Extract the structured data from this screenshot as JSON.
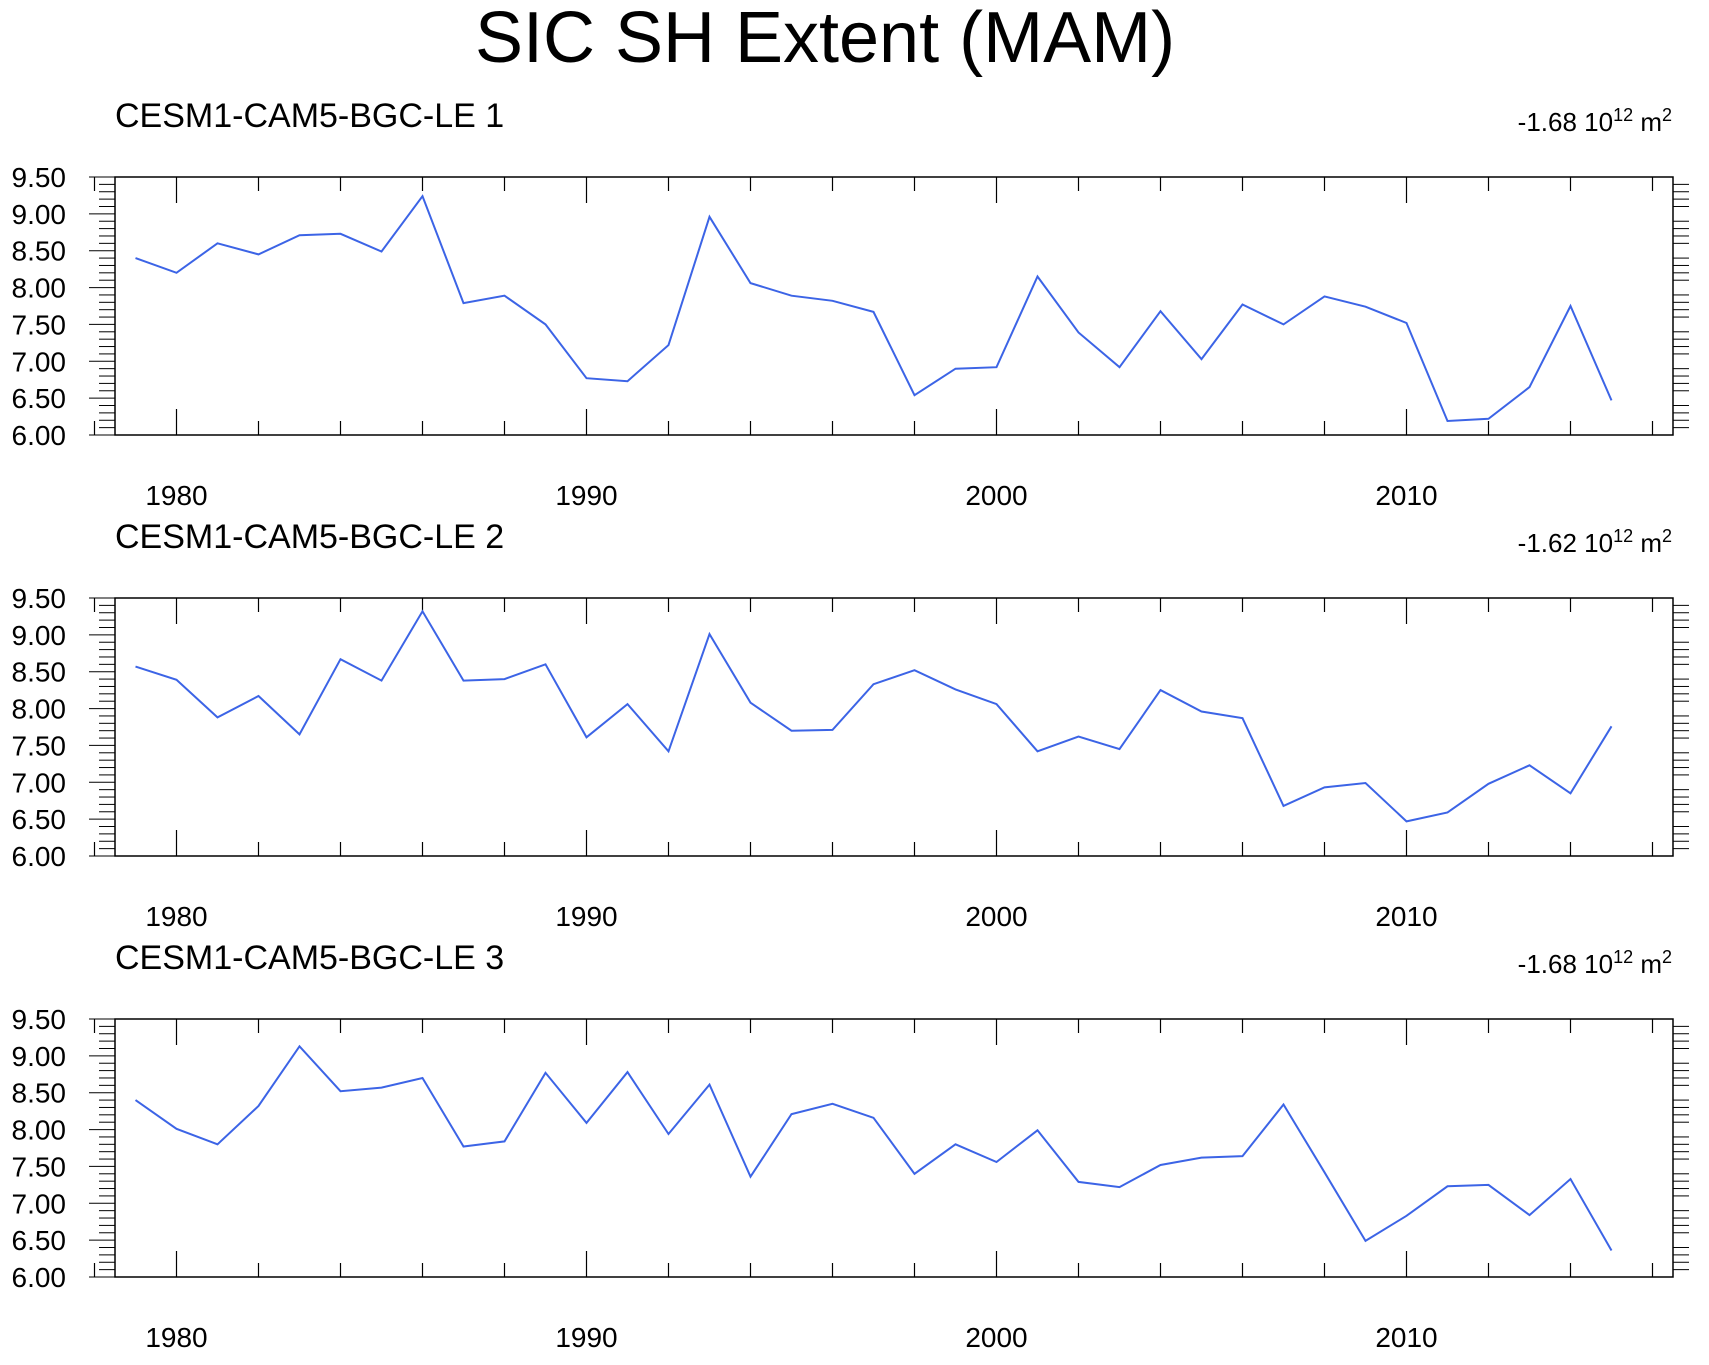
{
  "figure": {
    "title": "SIC SH Extent (MAM)"
  },
  "style": {
    "line_color": "#3c64e6",
    "axis_color": "#000000"
  },
  "chart_data": [
    {
      "type": "line",
      "title": "CESM1-CAM5-BGC-LE 1",
      "trend_value": "-1.68",
      "trend_base": "10",
      "trend_exponent": "12",
      "trend_unit": "m",
      "trend_unit_exponent": "2",
      "xlabel": "",
      "ylabel": "",
      "xlim": [
        1978.5,
        2016.5
      ],
      "ylim": [
        6.0,
        9.5
      ],
      "xticks": [
        1980,
        1990,
        2000,
        2010
      ],
      "yticks": [
        "6.00",
        "6.50",
        "7.00",
        "7.50",
        "8.00",
        "8.50",
        "9.00",
        "9.50"
      ],
      "x": [
        1979,
        1980,
        1981,
        1982,
        1983,
        1984,
        1985,
        1986,
        1987,
        1988,
        1989,
        1990,
        1991,
        1992,
        1993,
        1994,
        1995,
        1996,
        1997,
        1998,
        1999,
        2000,
        2001,
        2002,
        2003,
        2004,
        2005,
        2006,
        2007,
        2008,
        2009,
        2010,
        2011,
        2012,
        2013,
        2014,
        2015
      ],
      "values": [
        8.4,
        8.2,
        8.6,
        8.45,
        8.71,
        8.73,
        8.49,
        9.24,
        7.79,
        7.89,
        7.5,
        6.77,
        6.73,
        7.22,
        8.96,
        8.06,
        7.89,
        7.82,
        7.67,
        6.54,
        6.9,
        6.92,
        8.15,
        7.39,
        6.92,
        7.68,
        7.03,
        7.77,
        7.5,
        7.88,
        7.74,
        7.52,
        6.19,
        6.22,
        6.65,
        7.75,
        6.47
      ]
    },
    {
      "type": "line",
      "title": "CESM1-CAM5-BGC-LE 2",
      "trend_value": "-1.62",
      "trend_base": "10",
      "trend_exponent": "12",
      "trend_unit": "m",
      "trend_unit_exponent": "2",
      "xlabel": "",
      "ylabel": "",
      "xlim": [
        1978.5,
        2016.5
      ],
      "ylim": [
        6.0,
        9.5
      ],
      "xticks": [
        1980,
        1990,
        2000,
        2010
      ],
      "yticks": [
        "6.00",
        "6.50",
        "7.00",
        "7.50",
        "8.00",
        "8.50",
        "9.00",
        "9.50"
      ],
      "x": [
        1979,
        1980,
        1981,
        1982,
        1983,
        1984,
        1985,
        1986,
        1987,
        1988,
        1989,
        1990,
        1991,
        1992,
        1993,
        1994,
        1995,
        1996,
        1997,
        1998,
        1999,
        2000,
        2001,
        2002,
        2003,
        2004,
        2005,
        2006,
        2007,
        2008,
        2009,
        2010,
        2011,
        2012,
        2013,
        2014,
        2015
      ],
      "values": [
        8.57,
        8.39,
        7.88,
        8.17,
        7.65,
        8.67,
        8.38,
        9.32,
        8.38,
        8.4,
        8.6,
        7.61,
        8.06,
        7.42,
        9.01,
        8.08,
        7.7,
        7.71,
        8.33,
        8.52,
        8.26,
        8.06,
        7.42,
        7.62,
        7.45,
        8.25,
        7.96,
        7.87,
        6.68,
        6.93,
        6.99,
        6.47,
        6.59,
        6.98,
        7.23,
        6.85,
        7.76
      ]
    },
    {
      "type": "line",
      "title": "CESM1-CAM5-BGC-LE 3",
      "trend_value": "-1.68",
      "trend_base": "10",
      "trend_exponent": "12",
      "trend_unit": "m",
      "trend_unit_exponent": "2",
      "xlabel": "",
      "ylabel": "",
      "xlim": [
        1978.5,
        2016.5
      ],
      "ylim": [
        6.0,
        9.5
      ],
      "xticks": [
        1980,
        1990,
        2000,
        2010
      ],
      "yticks": [
        "6.00",
        "6.50",
        "7.00",
        "7.50",
        "8.00",
        "8.50",
        "9.00",
        "9.50"
      ],
      "x": [
        1979,
        1980,
        1981,
        1982,
        1983,
        1984,
        1985,
        1986,
        1987,
        1988,
        1989,
        1990,
        1991,
        1992,
        1993,
        1994,
        1995,
        1996,
        1997,
        1998,
        1999,
        2000,
        2001,
        2002,
        2003,
        2004,
        2005,
        2006,
        2007,
        2008,
        2009,
        2010,
        2011,
        2012,
        2013,
        2014,
        2015
      ],
      "values": [
        8.4,
        8.01,
        7.8,
        8.32,
        9.13,
        8.52,
        8.57,
        8.7,
        7.77,
        7.84,
        8.77,
        8.09,
        8.78,
        7.94,
        8.61,
        7.36,
        8.21,
        8.35,
        8.16,
        7.4,
        7.8,
        7.56,
        7.99,
        7.29,
        7.22,
        7.52,
        7.62,
        7.64,
        8.34,
        7.42,
        6.49,
        6.83,
        7.23,
        7.25,
        6.84,
        7.33,
        6.36
      ]
    }
  ]
}
